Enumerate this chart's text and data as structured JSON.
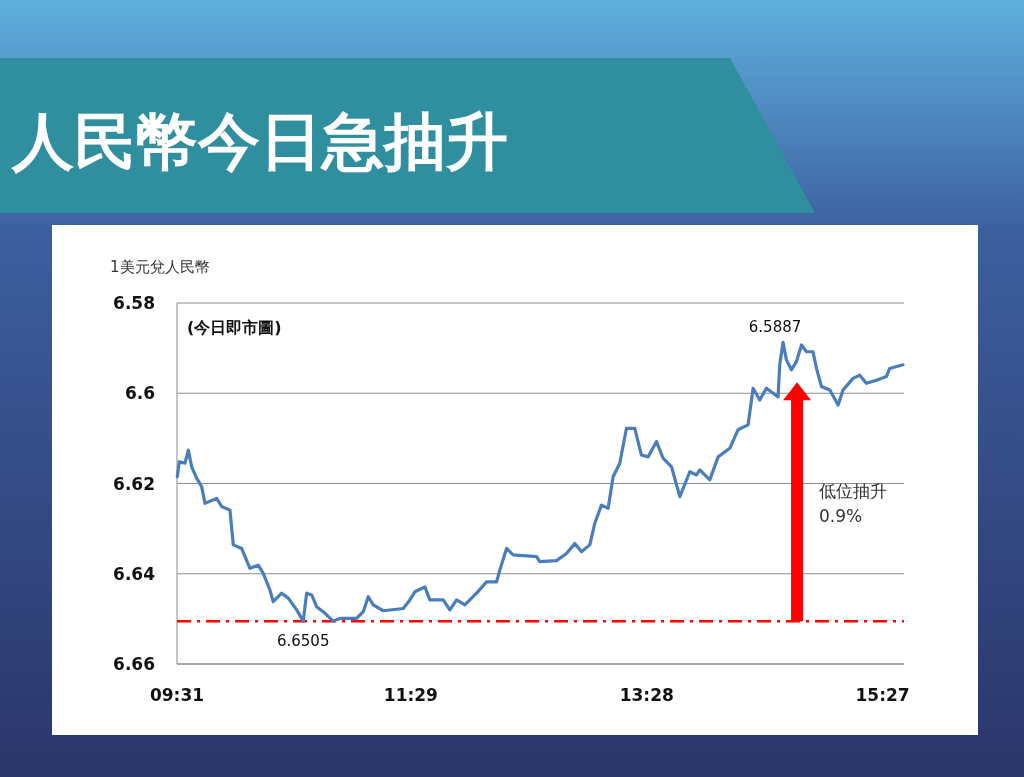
{
  "chart_data": {
    "type": "line",
    "title": "人民幣今日急抽升",
    "ylabel": "1美元兌人民幣",
    "xlim": [
      9.5167,
      15.63
    ],
    "xticks": [
      {
        "value": 9.5167,
        "label": "09:31"
      },
      {
        "value": 11.4833,
        "label": "11:29"
      },
      {
        "value": 13.4667,
        "label": "13:28"
      },
      {
        "value": 15.45,
        "label": "15:27"
      }
    ],
    "ylim": [
      6.66,
      6.58
    ],
    "yticks": [
      6.58,
      6.6,
      6.62,
      6.64,
      6.66
    ],
    "grid": "y",
    "marker": "none",
    "line_style": "solid",
    "series": [
      {
        "color": "#4a7ebb",
        "x": [
          9.519,
          9.536,
          9.584,
          9.612,
          9.64,
          9.682,
          9.724,
          9.752,
          9.85,
          9.892,
          9.962,
          9.99,
          10.06,
          10.13,
          10.2,
          10.242,
          10.298,
          10.326,
          10.397,
          10.452,
          10.523,
          10.578,
          10.607,
          10.649,
          10.691,
          10.746,
          10.83,
          10.887,
          11.027,
          11.083,
          11.125,
          11.167,
          11.251,
          11.419,
          11.475,
          11.517,
          11.601,
          11.643,
          11.755,
          11.811,
          11.868,
          11.937,
          12.036,
          12.12,
          12.204,
          12.231,
          12.288,
          12.343,
          12.54,
          12.567,
          12.708,
          12.792,
          12.862,
          12.918,
          12.988,
          13.03,
          13.086,
          13.142,
          13.184,
          13.24,
          13.296,
          13.366,
          13.422,
          13.478,
          13.549,
          13.604,
          13.675,
          13.745,
          13.829,
          13.885,
          13.913,
          13.997,
          14.067,
          14.165,
          14.234,
          14.319,
          14.361,
          14.417,
          14.473,
          14.571,
          14.585,
          14.613,
          14.641,
          14.683,
          14.725,
          14.768,
          14.81,
          14.865,
          14.894,
          14.936,
          15.006,
          15.076,
          15.117,
          15.201,
          15.258,
          15.313,
          15.398,
          15.482,
          15.51,
          15.621
        ],
        "values": [
          6.6185,
          6.6152,
          6.6155,
          6.6126,
          6.6163,
          6.6188,
          6.6207,
          6.6244,
          6.6233,
          6.6251,
          6.6259,
          6.6336,
          6.6344,
          6.6388,
          6.6381,
          6.6399,
          6.6436,
          6.6462,
          6.6443,
          6.6454,
          6.648,
          6.6505,
          6.6443,
          6.6447,
          6.6473,
          6.6484,
          6.6505,
          6.6499,
          6.6499,
          6.6484,
          6.6451,
          6.6469,
          6.6482,
          6.6477,
          6.6458,
          6.644,
          6.6429,
          6.6458,
          6.6458,
          6.648,
          6.6458,
          6.6469,
          6.6443,
          6.6418,
          6.6418,
          6.6392,
          6.6344,
          6.6358,
          6.6362,
          6.6373,
          6.6371,
          6.6355,
          6.6333,
          6.6351,
          6.6336,
          6.6288,
          6.6248,
          6.6255,
          6.6185,
          6.6155,
          6.6078,
          6.6078,
          6.6137,
          6.6141,
          6.6107,
          6.6144,
          6.6163,
          6.6229,
          6.6174,
          6.6181,
          6.617,
          6.6192,
          6.6141,
          6.6122,
          6.6081,
          6.607,
          6.5989,
          6.6015,
          6.5989,
          6.6008,
          6.5937,
          6.5887,
          6.5926,
          6.5948,
          6.593,
          6.5893,
          6.5908,
          6.5908,
          6.5945,
          6.5985,
          6.5993,
          6.6026,
          6.5993,
          6.5967,
          6.596,
          6.5978,
          6.5971,
          6.5963,
          6.5945,
          6.5937
        ]
      }
    ],
    "ref_lines": [
      {
        "axis": "y",
        "value": 6.6505,
        "color": "#ff0000",
        "line_style": "dashed"
      }
    ],
    "annotations": [
      "(今日即市圖)",
      {
        "text": "6.5887",
        "x": 14.613,
        "y": 6.5887
      },
      {
        "text": "6.6505",
        "x": 10.578,
        "y": 6.6505
      },
      "低位抽升\n0.9%"
    ]
  }
}
